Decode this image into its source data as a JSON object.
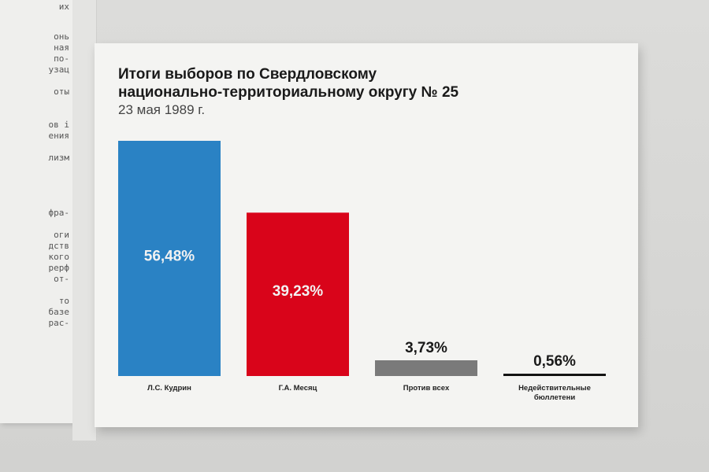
{
  "chart_data": {
    "type": "bar",
    "title_lines": [
      "Итоги выборов по Свердловскому",
      "национально-территориальному округу № 25"
    ],
    "subtitle": "23 мая 1989 г.",
    "categories": [
      [
        "Л.С. Кудрин"
      ],
      [
        "Г.А. Месяц"
      ],
      [
        "Против всех"
      ],
      [
        "Недействительные",
        "бюллетени"
      ]
    ],
    "values": [
      56.48,
      39.23,
      3.73,
      0.56
    ],
    "value_labels": [
      "56,48%",
      "39,23%",
      "3,73%",
      "0,56%"
    ],
    "colors": [
      "#2a82c4",
      "#d9041a",
      "#7a7a7a",
      "#111111"
    ],
    "ylim": [
      0,
      56.48
    ]
  },
  "background_document": {
    "lines": [
      "их",
      "онь",
      "ная",
      "по-",
      "узац",
      "оты",
      "ов і",
      "ения",
      "лизм",
      "фра-",
      "оги",
      "дств",
      "кого",
      "рерф",
      "от-",
      "то",
      "базе",
      "рас-"
    ]
  }
}
